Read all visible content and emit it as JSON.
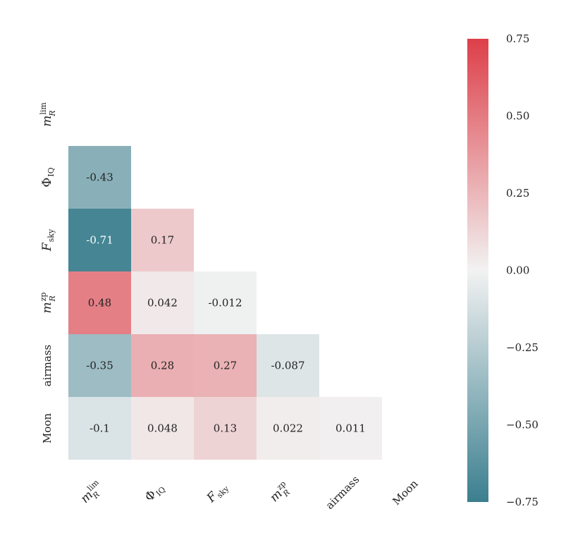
{
  "chart_data": {
    "type": "heatmap",
    "title": "",
    "variables": [
      {
        "id": "mlim",
        "base": "m",
        "sup": "lim",
        "sub": "R",
        "italic_base": true
      },
      {
        "id": "phiiq",
        "base": "Φ",
        "sub": "IQ",
        "italic_base": false
      },
      {
        "id": "fsky",
        "base": "F",
        "sub": "sky",
        "italic_base": true
      },
      {
        "id": "mzp",
        "base": "m",
        "sup": "zp",
        "sub": "R",
        "italic_base": true
      },
      {
        "id": "airmass",
        "base": "airmass",
        "italic_base": false
      },
      {
        "id": "moon",
        "base": "Moon",
        "italic_base": false
      }
    ],
    "mask": "upper-triangle-including-diagonal",
    "cells": [
      {
        "row": 1,
        "col": 0,
        "value": -0.43,
        "label": "-0.43"
      },
      {
        "row": 2,
        "col": 0,
        "value": -0.71,
        "label": "-0.71"
      },
      {
        "row": 2,
        "col": 1,
        "value": 0.17,
        "label": "0.17"
      },
      {
        "row": 3,
        "col": 0,
        "value": 0.48,
        "label": "0.48"
      },
      {
        "row": 3,
        "col": 1,
        "value": 0.042,
        "label": "0.042"
      },
      {
        "row": 3,
        "col": 2,
        "value": -0.012,
        "label": "-0.012"
      },
      {
        "row": 4,
        "col": 0,
        "value": -0.35,
        "label": "-0.35"
      },
      {
        "row": 4,
        "col": 1,
        "value": 0.28,
        "label": "0.28"
      },
      {
        "row": 4,
        "col": 2,
        "value": 0.27,
        "label": "0.27"
      },
      {
        "row": 4,
        "col": 3,
        "value": -0.087,
        "label": "-0.087"
      },
      {
        "row": 5,
        "col": 0,
        "value": -0.1,
        "label": "-0.1"
      },
      {
        "row": 5,
        "col": 1,
        "value": 0.048,
        "label": "0.048"
      },
      {
        "row": 5,
        "col": 2,
        "value": 0.13,
        "label": "0.13"
      },
      {
        "row": 5,
        "col": 3,
        "value": 0.022,
        "label": "0.022"
      },
      {
        "row": 5,
        "col": 4,
        "value": 0.011,
        "label": "0.011"
      }
    ],
    "colorbar": {
      "vmin": -0.75,
      "vmax": 0.75,
      "ticks": [
        0.75,
        0.5,
        0.25,
        0.0,
        -0.25,
        -0.5,
        -0.75
      ],
      "tick_labels": [
        "0.75",
        "0.50",
        "0.25",
        "0.00",
        "−0.25",
        "−0.50",
        "−0.75"
      ]
    },
    "colors": {
      "negative": "#3b7f8f",
      "neutral": "#f2f2f2",
      "positive": "#dd3f49"
    }
  }
}
